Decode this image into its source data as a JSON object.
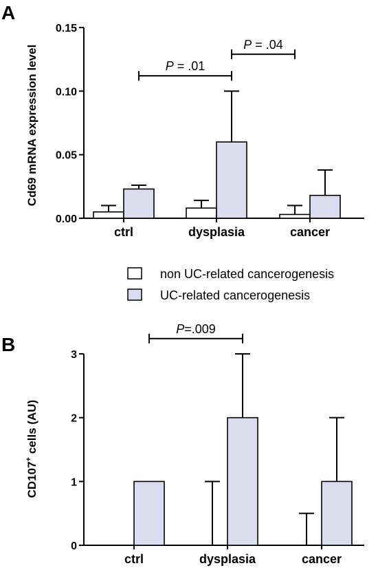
{
  "colors": {
    "treated": "#dcdcf0",
    "control": "#ffffff",
    "stroke": "#000000"
  },
  "legend": {
    "entries": [
      {
        "name": "non UC-related cancerogenesis",
        "color": "#ffffff"
      },
      {
        "name": "UC-related cancerogenesis",
        "color": "#dcdcf0"
      }
    ]
  },
  "chart_data": [
    {
      "panel": "A",
      "type": "bar",
      "categories": [
        "ctrl",
        "dysplasia",
        "cancer"
      ],
      "ylabel": "Cd69 mRNA expression level",
      "ylim": [
        0,
        0.15
      ],
      "yticks": [
        "0.00",
        "0.05",
        "0.10",
        "0.15"
      ],
      "series": [
        {
          "name": "non UC-related cancerogenesis",
          "values": [
            0.005,
            0.008,
            0.003
          ],
          "errors": [
            0.005,
            0.006,
            0.007
          ],
          "color": "#ffffff"
        },
        {
          "name": "UC-related cancerogenesis",
          "values": [
            0.023,
            0.06,
            0.018
          ],
          "errors": [
            0.003,
            0.04,
            0.02
          ],
          "color": "#dcdcf0"
        }
      ],
      "annotations": [
        {
          "text_prefix": "P",
          "text_suffix": " = .01",
          "from": [
            0,
            1
          ],
          "to": [
            1,
            1
          ],
          "y": 0.112
        },
        {
          "text_prefix": "P",
          "text_suffix": " = .04",
          "from": [
            1,
            1
          ],
          "to": [
            2,
            0
          ],
          "y": 0.129
        }
      ]
    },
    {
      "panel": "B",
      "type": "bar",
      "categories": [
        "ctrl",
        "dysplasia",
        "cancer"
      ],
      "ylabel_main": "CD107",
      "ylabel_sup": "+",
      "ylabel_rest": " cells (AU)",
      "ylim": [
        0,
        3
      ],
      "yticks": [
        "0",
        "1",
        "2",
        "3"
      ],
      "series": [
        {
          "name": "non UC-related cancerogenesis",
          "values": [
            0,
            0,
            0
          ],
          "errors": [
            0,
            1,
            0.5
          ],
          "color": "#ffffff"
        },
        {
          "name": "UC-related cancerogenesis",
          "values": [
            1,
            2,
            1
          ],
          "errors": [
            0,
            1,
            1
          ],
          "color": "#dcdcf0"
        }
      ],
      "annotations": [
        {
          "text_prefix": "P",
          "text_suffix": "=.009",
          "from": [
            0,
            1
          ],
          "to": [
            1,
            1
          ],
          "y": 3.24
        }
      ]
    }
  ]
}
